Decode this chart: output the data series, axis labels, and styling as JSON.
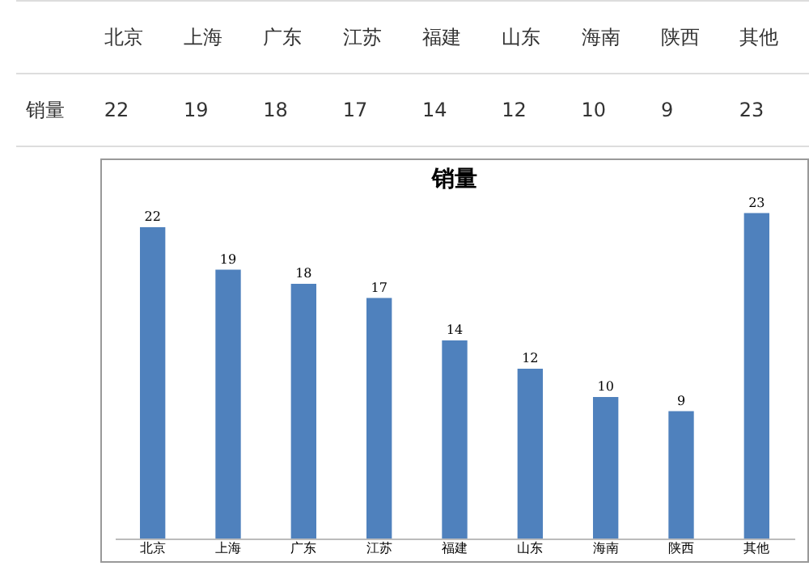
{
  "chart_data": [
    {
      "type": "other",
      "ylabel": "销量",
      "categories": [
        "北京",
        "上海",
        "广东",
        "江苏",
        "福建",
        "山东",
        "海南",
        "陕西",
        "其他"
      ],
      "values": [
        22,
        19,
        18,
        17,
        14,
        12,
        10,
        9,
        23
      ],
      "data_labels": true
    },
    {
      "type": "bar",
      "title": "销量",
      "categories": [
        "北京",
        "上海",
        "广东",
        "江苏",
        "福建",
        "山东",
        "海南",
        "陕西",
        "其他"
      ],
      "values": [
        22,
        19,
        18,
        17,
        14,
        12,
        10,
        9,
        23
      ],
      "value_labels": [
        "22",
        "19",
        "18",
        "17",
        "14",
        "12",
        "10",
        "9",
        "23"
      ],
      "color": "#4f81bd",
      "grid": false,
      "legend": false
    }
  ]
}
